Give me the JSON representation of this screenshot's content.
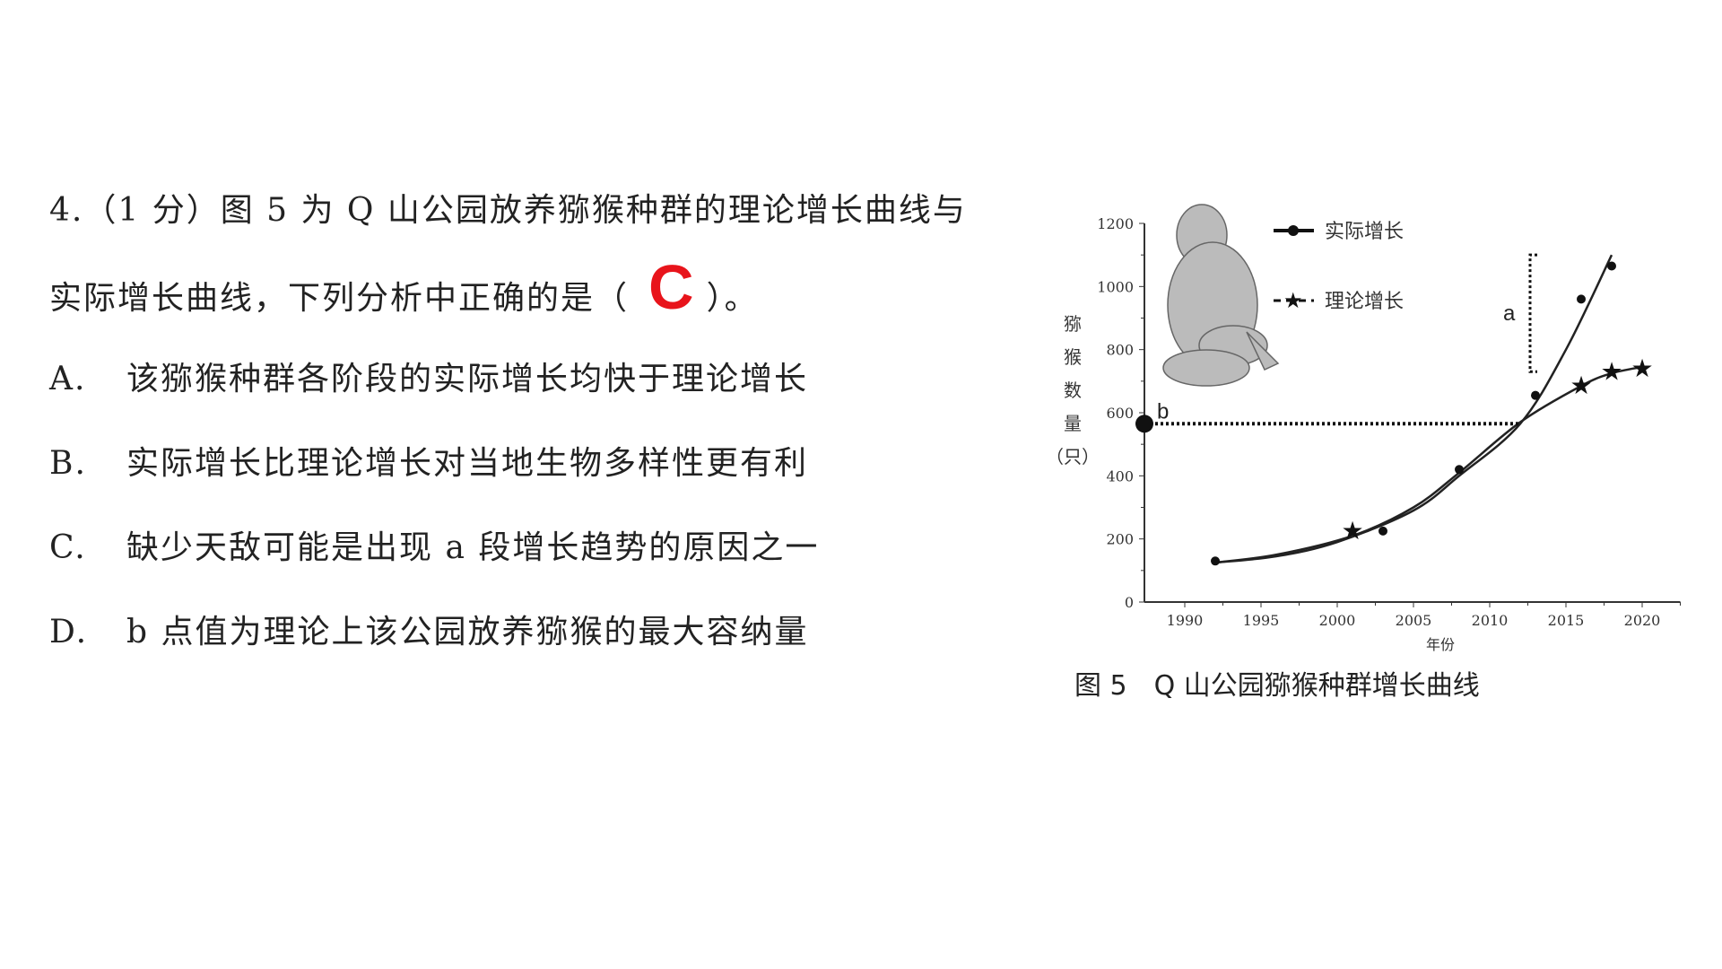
{
  "question": {
    "line1": "4.（1 分）图 5 为 Q 山公园放养猕猴种群的理论增长曲线与",
    "line2": "实际增长曲线，下列分析中正确的是（",
    "line2_end": "）。",
    "answer": "C",
    "answer_color": "#e8141b",
    "options": [
      {
        "letter": "A.",
        "text": "该猕猴种群各阶段的实际增长均快于理论增长"
      },
      {
        "letter": "B.",
        "text": "实际增长比理论增长对当地生物多样性更有利"
      },
      {
        "letter": "C.",
        "text": "缺少天敌可能是出现 a 段增长趋势的原因之一"
      },
      {
        "letter": "D.",
        "text": "b 点值为理论上该公园放养猕猴的最大容纳量"
      }
    ]
  },
  "chart_data": {
    "type": "line",
    "title": "图 5　Q 山公园猕猴种群增长曲线",
    "xlabel": "年份",
    "ylabel": [
      "猕",
      "猴",
      "数",
      "量",
      "（只）"
    ],
    "xlim": [
      1987.5,
      2022.5
    ],
    "ylim": [
      0,
      1200
    ],
    "xticks": [
      "1990",
      "1995",
      "2000",
      "2005",
      "2010",
      "2015",
      "2020"
    ],
    "yticks": [
      "0",
      "200",
      "400",
      "600",
      "800",
      "1000",
      "1200"
    ],
    "grid": false,
    "legend_placement": "top-left",
    "series": [
      {
        "name": "实际增长",
        "marker": "circle",
        "points": [
          [
            1992,
            130
          ],
          [
            2003,
            225
          ],
          [
            2008,
            420
          ],
          [
            2013,
            655
          ],
          [
            2016,
            960
          ],
          [
            2018,
            1065
          ]
        ],
        "curve": [
          [
            1992,
            125
          ],
          [
            1996,
            145
          ],
          [
            2000,
            190
          ],
          [
            2005,
            290
          ],
          [
            2008,
            400
          ],
          [
            2012,
            565
          ],
          [
            2015,
            800
          ],
          [
            2018,
            1100
          ]
        ]
      },
      {
        "name": "理论增长",
        "marker": "star",
        "points": [
          [
            2001,
            225
          ],
          [
            2016,
            685
          ],
          [
            2018,
            730
          ],
          [
            2020,
            740
          ]
        ],
        "curve": [
          [
            1992,
            125
          ],
          [
            1996,
            150
          ],
          [
            2001,
            210
          ],
          [
            2005,
            300
          ],
          [
            2008,
            410
          ],
          [
            2012,
            570
          ],
          [
            2016,
            685
          ],
          [
            2018,
            725
          ],
          [
            2020,
            745
          ]
        ]
      }
    ],
    "annotations": {
      "b_label": "b",
      "b_value": 565,
      "b_line_end_year": 2012,
      "a_label": "a",
      "a_range": [
        730,
        1100
      ],
      "a_year": 2013
    }
  }
}
